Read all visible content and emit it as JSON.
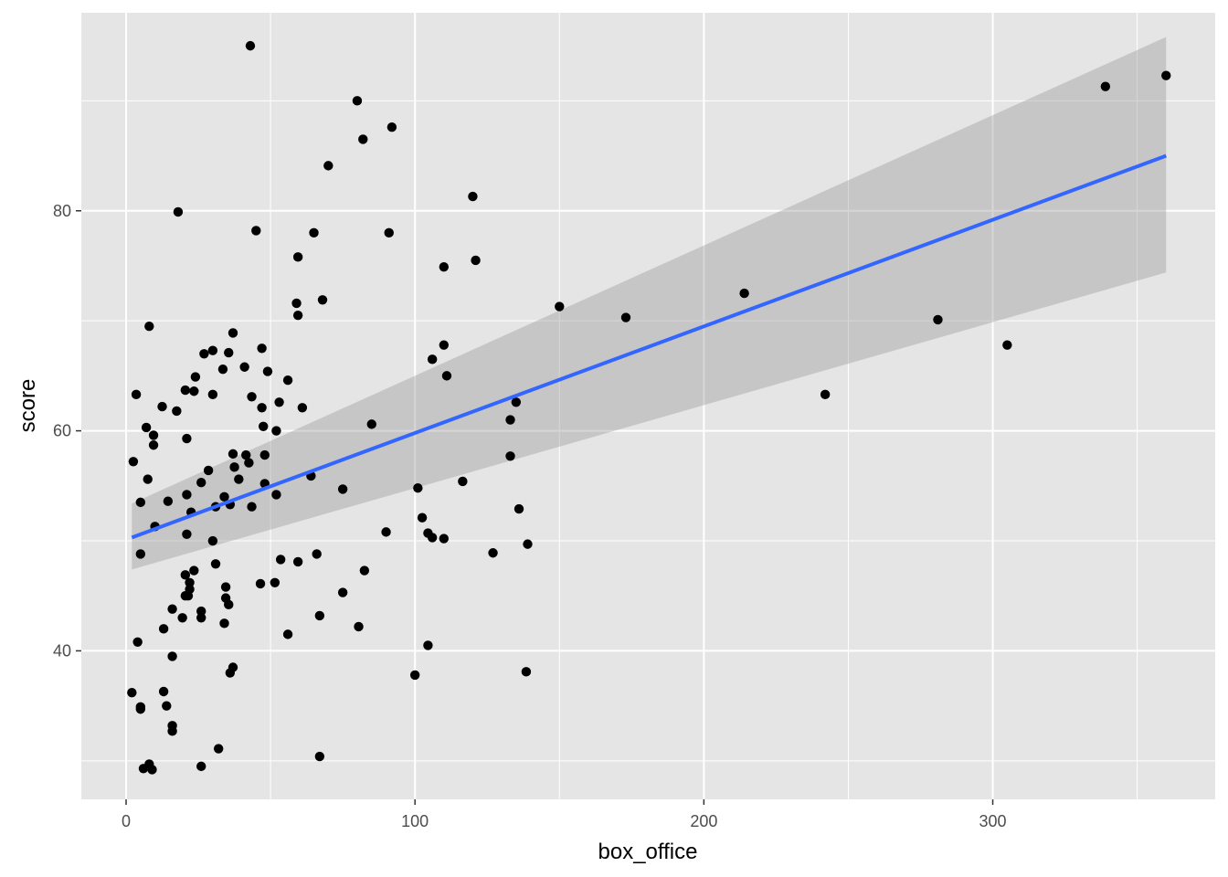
{
  "chart_data": {
    "type": "scatter",
    "xlabel": "box_office",
    "ylabel": "score",
    "xlim": [
      -15.5,
      377
    ],
    "ylim": [
      26.5,
      98
    ],
    "x_ticks": [
      0,
      100,
      200,
      300
    ],
    "y_ticks": [
      40,
      60,
      80
    ],
    "x_tick_labels": [
      "0",
      "100",
      "200",
      "300"
    ],
    "y_tick_labels": [
      "40",
      "60",
      "80"
    ],
    "grid": true,
    "legend": "none",
    "colors": {
      "panel": "#e5e5e5",
      "grid": "#ffffff",
      "points": "#000000",
      "trend_line": "#3366ff",
      "confidence_band": "#999999"
    },
    "points": [
      [
        43,
        95
      ],
      [
        80,
        90
      ],
      [
        92,
        87.6
      ],
      [
        82,
        86.5
      ],
      [
        70,
        84.1
      ],
      [
        120,
        81.3
      ],
      [
        18,
        79.9
      ],
      [
        45,
        78.2
      ],
      [
        65,
        78
      ],
      [
        91,
        78
      ],
      [
        59.5,
        75.8
      ],
      [
        121,
        75.5
      ],
      [
        110,
        74.9
      ],
      [
        68,
        71.9
      ],
      [
        59,
        71.6
      ],
      [
        150,
        71.3
      ],
      [
        214,
        72.5
      ],
      [
        59.5,
        70.5
      ],
      [
        173,
        70.3
      ],
      [
        281,
        70.1
      ],
      [
        8,
        69.5
      ],
      [
        37,
        68.9
      ],
      [
        305,
        67.8
      ],
      [
        110,
        67.8
      ],
      [
        47,
        67.5
      ],
      [
        30,
        67.3
      ],
      [
        35.5,
        67.1
      ],
      [
        27,
        67
      ],
      [
        106,
        66.5
      ],
      [
        41,
        65.8
      ],
      [
        33.5,
        65.6
      ],
      [
        49,
        65.4
      ],
      [
        111,
        65
      ],
      [
        24,
        64.9
      ],
      [
        56,
        64.6
      ],
      [
        3.5,
        63.3
      ],
      [
        30,
        63.3
      ],
      [
        242,
        63.3
      ],
      [
        43.5,
        63.1
      ],
      [
        53,
        62.6
      ],
      [
        135,
        62.6
      ],
      [
        23.5,
        63.6
      ],
      [
        20.5,
        63.7
      ],
      [
        12.5,
        62.2
      ],
      [
        47,
        62.1
      ],
      [
        61,
        62.1
      ],
      [
        17.5,
        61.8
      ],
      [
        133,
        61
      ],
      [
        85,
        60.6
      ],
      [
        47.5,
        60.4
      ],
      [
        7,
        60.3
      ],
      [
        52,
        60
      ],
      [
        9.5,
        59.6
      ],
      [
        21,
        59.3
      ],
      [
        9.5,
        58.7
      ],
      [
        37,
        57.9
      ],
      [
        41.5,
        57.8
      ],
      [
        48,
        57.8
      ],
      [
        133,
        57.7
      ],
      [
        2.5,
        57.2
      ],
      [
        42.5,
        57.1
      ],
      [
        37.5,
        56.7
      ],
      [
        28.5,
        56.4
      ],
      [
        7.5,
        55.6
      ],
      [
        39,
        55.6
      ],
      [
        64,
        55.9
      ],
      [
        116.5,
        55.4
      ],
      [
        26,
        55.3
      ],
      [
        48,
        55.2
      ],
      [
        75,
        54.7
      ],
      [
        101,
        54.8
      ],
      [
        21,
        54.2
      ],
      [
        52,
        54.2
      ],
      [
        34,
        54
      ],
      [
        14.5,
        53.6
      ],
      [
        5,
        53.5
      ],
      [
        43.5,
        53.1
      ],
      [
        36,
        53.3
      ],
      [
        31,
        53.1
      ],
      [
        136,
        52.9
      ],
      [
        22.5,
        52.6
      ],
      [
        102.5,
        52.1
      ],
      [
        10,
        51.3
      ],
      [
        90,
        50.8
      ],
      [
        104.5,
        50.7
      ],
      [
        21,
        50.6
      ],
      [
        106,
        50.3
      ],
      [
        110,
        50.2
      ],
      [
        30,
        50
      ],
      [
        139,
        49.7
      ],
      [
        5,
        48.8
      ],
      [
        127,
        48.9
      ],
      [
        66,
        48.8
      ],
      [
        53.5,
        48.3
      ],
      [
        59.5,
        48.1
      ],
      [
        31,
        47.9
      ],
      [
        82.5,
        47.3
      ],
      [
        23.5,
        47.3
      ],
      [
        20.5,
        46.9
      ],
      [
        22,
        46.2
      ],
      [
        46.5,
        46.1
      ],
      [
        51.5,
        46.2
      ],
      [
        34.5,
        45.8
      ],
      [
        22,
        45.6
      ],
      [
        75,
        45.3
      ],
      [
        21.5,
        45
      ],
      [
        20.5,
        45
      ],
      [
        34.5,
        44.8
      ],
      [
        35.5,
        44.2
      ],
      [
        16,
        43.8
      ],
      [
        26,
        43.6
      ],
      [
        67,
        43.2
      ],
      [
        19.5,
        43
      ],
      [
        26,
        43
      ],
      [
        34,
        42.5
      ],
      [
        80.5,
        42.2
      ],
      [
        13,
        42
      ],
      [
        56,
        41.5
      ],
      [
        4,
        40.8
      ],
      [
        104.5,
        40.5
      ],
      [
        16,
        39.5
      ],
      [
        37,
        38.5
      ],
      [
        36,
        38
      ],
      [
        138.5,
        38.1
      ],
      [
        100,
        37.8
      ],
      [
        2,
        36.2
      ],
      [
        13,
        36.3
      ],
      [
        5,
        34.9
      ],
      [
        5,
        34.7
      ],
      [
        14,
        35
      ],
      [
        16,
        33.2
      ],
      [
        16,
        32.7
      ],
      [
        32,
        31.1
      ],
      [
        67,
        30.4
      ],
      [
        8,
        29.7
      ],
      [
        26,
        29.5
      ],
      [
        6,
        29.3
      ],
      [
        9,
        29.2
      ],
      [
        339,
        91.3
      ],
      [
        360,
        92.3
      ]
    ],
    "trend_line": {
      "type": "linear",
      "x": [
        2,
        360
      ],
      "y": [
        50.3,
        85
      ],
      "ci_lower": [
        47.4,
        74.4
      ],
      "ci_upper": [
        53.4,
        95.8
      ]
    }
  }
}
